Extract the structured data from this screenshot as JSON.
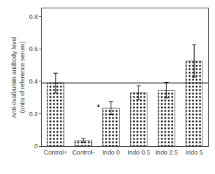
{
  "chart_data": {
    "type": "bar",
    "categories": [
      "Control+",
      "Control-",
      "Indo 0",
      "Indo 0.5",
      "Indo 2.5",
      "Indo 5"
    ],
    "values": [
      0.39,
      0.035,
      0.235,
      0.33,
      0.345,
      0.525
    ],
    "errors": [
      0.06,
      0.012,
      0.04,
      0.042,
      0.048,
      0.1
    ],
    "color": "#b0b0b0",
    "reference_line": 0.39,
    "annotations": [
      {
        "text": "*",
        "category": "Indo 0"
      }
    ],
    "ylabel": "Anti-ovalbumin antibody level\n(units of reference serum)",
    "ylim": [
      0,
      0.85
    ],
    "yticks": [
      0,
      0.2,
      0.4,
      0.6,
      0.8
    ],
    "grid": false
  }
}
